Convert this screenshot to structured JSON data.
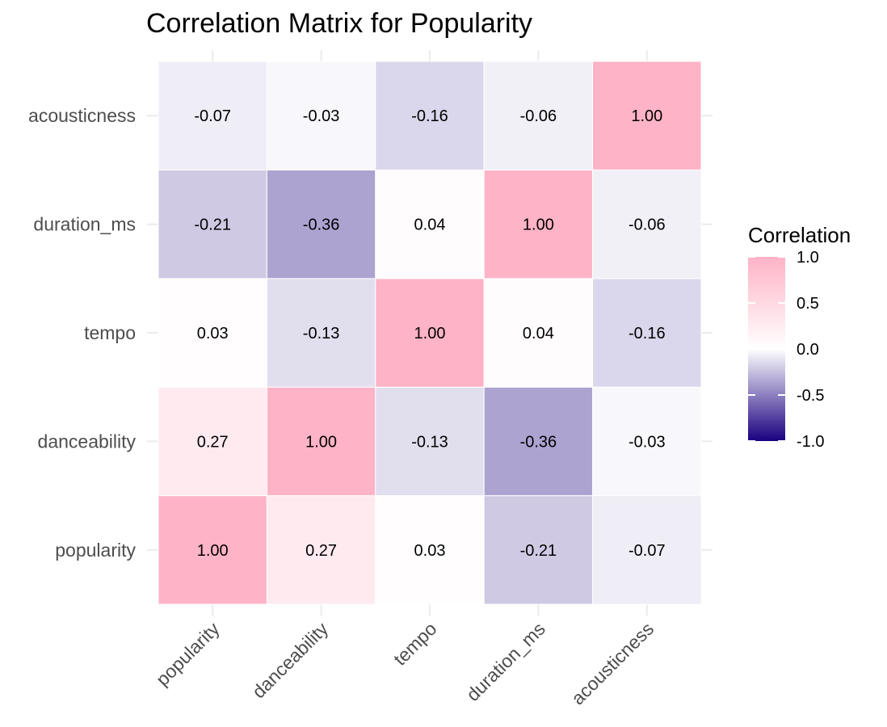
{
  "chart_data": {
    "type": "heatmap",
    "title": "Correlation Matrix for Popularity",
    "x_categories": [
      "popularity",
      "danceability",
      "tempo",
      "duration_ms",
      "acousticness"
    ],
    "y_categories": [
      "popularity",
      "danceability",
      "tempo",
      "duration_ms",
      "acousticness"
    ],
    "matrix": [
      [
        1.0,
        0.27,
        0.03,
        -0.21,
        -0.07
      ],
      [
        0.27,
        1.0,
        -0.13,
        -0.36,
        -0.03
      ],
      [
        0.03,
        -0.13,
        1.0,
        0.04,
        -0.16
      ],
      [
        -0.21,
        -0.36,
        0.04,
        1.0,
        -0.06
      ],
      [
        -0.07,
        -0.03,
        -0.16,
        -0.06,
        1.0
      ]
    ],
    "value_format_decimals": 2,
    "legend": {
      "title": "Correlation",
      "placement": "right",
      "ticks": [
        1.0,
        0.5,
        0.0,
        -0.5,
        -1.0
      ],
      "range": [
        -1,
        1
      ]
    },
    "colors": {
      "high": "#ffb3c6",
      "mid": "#ffffff",
      "low": "#1a0080"
    },
    "grid": true
  }
}
